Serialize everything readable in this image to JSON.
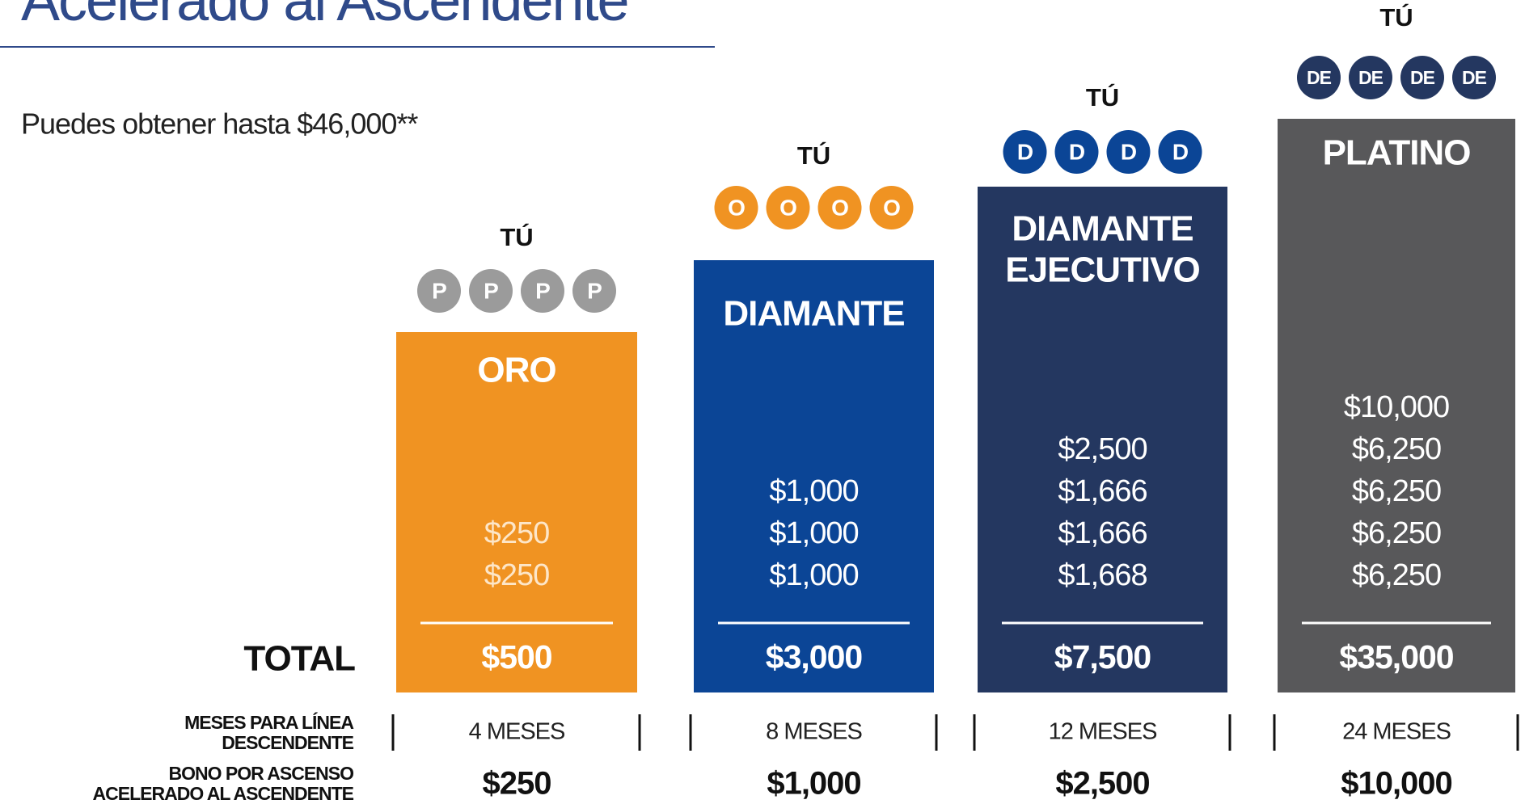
{
  "header": {
    "title": "Acelerado al Ascendente",
    "subtitle": "Puedes obtener hasta $46,000**"
  },
  "total_label": "TOTAL",
  "row_labels": {
    "months": [
      "MESES PARA LÍNEA",
      "DESCENDENTE"
    ],
    "bonus": [
      "BONO POR ASCENSO",
      "ACELERADO AL ASCENDENTE"
    ]
  },
  "columns": [
    {
      "you": "TÚ",
      "badges": [
        "P",
        "P",
        "P",
        "P"
      ],
      "badge_color": "#9b9b9b",
      "name": [
        "ORO"
      ],
      "color": "#f09322",
      "amounts": [
        "$250",
        "$250"
      ],
      "total": "$500",
      "months": "4 MESES",
      "bonus": "$250"
    },
    {
      "you": "TÚ",
      "badges": [
        "O",
        "O",
        "O",
        "O"
      ],
      "badge_color": "#f09322",
      "name": [
        "DIAMANTE"
      ],
      "color": "#0b4596",
      "amounts": [
        "$1,000",
        "$1,000",
        "$1,000"
      ],
      "total": "$3,000",
      "months": "8 MESES",
      "bonus": "$1,000"
    },
    {
      "you": "TÚ",
      "badges": [
        "D",
        "D",
        "D",
        "D"
      ],
      "badge_color": "#0b4596",
      "name": [
        "DIAMANTE",
        "EJECUTIVO"
      ],
      "color": "#243760",
      "amounts": [
        "$2,500",
        "$1,666",
        "$1,666",
        "$1,668"
      ],
      "total": "$7,500",
      "months": "12 MESES",
      "bonus": "$2,500"
    },
    {
      "you": "TÚ",
      "badges": [
        "DE",
        "DE",
        "DE",
        "DE"
      ],
      "badge_color": "#243760",
      "name": [
        "PLATINO"
      ],
      "color": "#58585a",
      "amounts": [
        "$10,000",
        "$6,250",
        "$6,250",
        "$6,250",
        "$6,250"
      ],
      "total": "$35,000",
      "months": "24 MESES",
      "bonus": "$10,000"
    }
  ]
}
